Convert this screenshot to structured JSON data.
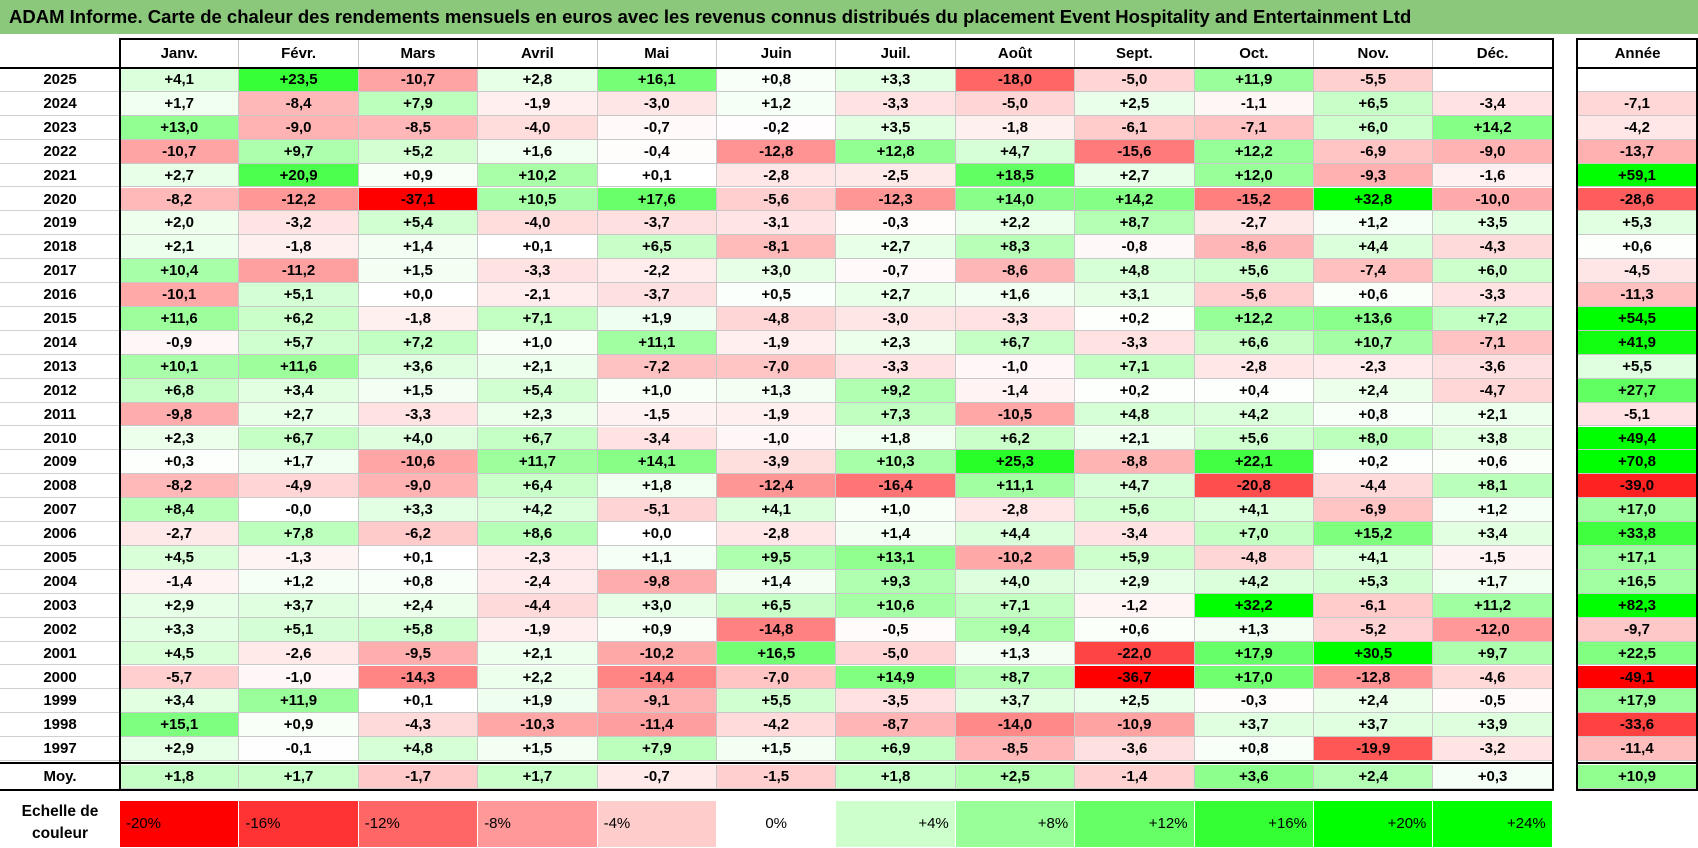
{
  "title": "ADAM Informe. Carte de chaleur des rendements mensuels en euros avec les revenus connus distribués du placement Event Hospitality and Entertainment Ltd",
  "chart_data": {
    "type": "heatmap",
    "months": [
      "Janv.",
      "Févr.",
      "Mars",
      "Avril",
      "Mai",
      "Juin",
      "Juil.",
      "Août",
      "Sept.",
      "Oct.",
      "Nov.",
      "Déc."
    ],
    "annual_header": "Année",
    "rows": [
      {
        "year": "2025",
        "values": [
          "+4,1",
          "+23,5",
          "-10,7",
          "+2,8",
          "+16,1",
          "+0,8",
          "+3,3",
          "-18,0",
          "-5,0",
          "+11,9",
          "-5,5",
          ""
        ],
        "annual": ""
      },
      {
        "year": "2024",
        "values": [
          "+1,7",
          "-8,4",
          "+7,9",
          "-1,9",
          "-3,0",
          "+1,2",
          "-3,3",
          "-5,0",
          "+2,5",
          "-1,1",
          "+6,5",
          "-3,4"
        ],
        "annual": "-7,1"
      },
      {
        "year": "2023",
        "values": [
          "+13,0",
          "-9,0",
          "-8,5",
          "-4,0",
          "-0,7",
          "-0,2",
          "+3,5",
          "-1,8",
          "-6,1",
          "-7,1",
          "+6,0",
          "+14,2"
        ],
        "annual": "-4,2"
      },
      {
        "year": "2022",
        "values": [
          "-10,7",
          "+9,7",
          "+5,2",
          "+1,6",
          "-0,4",
          "-12,8",
          "+12,8",
          "+4,7",
          "-15,6",
          "+12,2",
          "-6,9",
          "-9,0"
        ],
        "annual": "-13,7"
      },
      {
        "year": "2021",
        "values": [
          "+2,7",
          "+20,9",
          "+0,9",
          "+10,2",
          "+0,1",
          "-2,8",
          "-2,5",
          "+18,5",
          "+2,7",
          "+12,0",
          "-9,3",
          "-1,6"
        ],
        "annual": "+59,1"
      },
      {
        "year": "2020",
        "values": [
          "-8,2",
          "-12,2",
          "-37,1",
          "+10,5",
          "+17,6",
          "-5,6",
          "-12,3",
          "+14,0",
          "+14,2",
          "-15,2",
          "+32,8",
          "-10,0"
        ],
        "annual": "-28,6"
      },
      {
        "year": "2019",
        "values": [
          "+2,0",
          "-3,2",
          "+5,4",
          "-4,0",
          "-3,7",
          "-3,1",
          "-0,3",
          "+2,2",
          "+8,7",
          "-2,7",
          "+1,2",
          "+3,5"
        ],
        "annual": "+5,3"
      },
      {
        "year": "2018",
        "values": [
          "+2,1",
          "-1,8",
          "+1,4",
          "+0,1",
          "+6,5",
          "-8,1",
          "+2,7",
          "+8,3",
          "-0,8",
          "-8,6",
          "+4,4",
          "-4,3"
        ],
        "annual": "+0,6"
      },
      {
        "year": "2017",
        "values": [
          "+10,4",
          "-11,2",
          "+1,5",
          "-3,3",
          "-2,2",
          "+3,0",
          "-0,7",
          "-8,6",
          "+4,8",
          "+5,6",
          "-7,4",
          "+6,0"
        ],
        "annual": "-4,5"
      },
      {
        "year": "2016",
        "values": [
          "-10,1",
          "+5,1",
          "+0,0",
          "-2,1",
          "-3,7",
          "+0,5",
          "+2,7",
          "+1,6",
          "+3,1",
          "-5,6",
          "+0,6",
          "-3,3"
        ],
        "annual": "-11,3"
      },
      {
        "year": "2015",
        "values": [
          "+11,6",
          "+6,2",
          "-1,8",
          "+7,1",
          "+1,9",
          "-4,8",
          "-3,0",
          "-3,3",
          "+0,2",
          "+12,2",
          "+13,6",
          "+7,2"
        ],
        "annual": "+54,5"
      },
      {
        "year": "2014",
        "values": [
          "-0,9",
          "+5,7",
          "+7,2",
          "+1,0",
          "+11,1",
          "-1,9",
          "+2,3",
          "+6,7",
          "-3,3",
          "+6,6",
          "+10,7",
          "-7,1"
        ],
        "annual": "+41,9"
      },
      {
        "year": "2013",
        "values": [
          "+10,1",
          "+11,6",
          "+3,6",
          "+2,1",
          "-7,2",
          "-7,0",
          "-3,3",
          "-1,0",
          "+7,1",
          "-2,8",
          "-2,3",
          "-3,6"
        ],
        "annual": "+5,5"
      },
      {
        "year": "2012",
        "values": [
          "+6,8",
          "+3,4",
          "+1,5",
          "+5,4",
          "+1,0",
          "+1,3",
          "+9,2",
          "-1,4",
          "+0,2",
          "+0,4",
          "+2,4",
          "-4,7"
        ],
        "annual": "+27,7"
      },
      {
        "year": "2011",
        "values": [
          "-9,8",
          "+2,7",
          "-3,3",
          "+2,3",
          "-1,5",
          "-1,9",
          "+7,3",
          "-10,5",
          "+4,8",
          "+4,2",
          "+0,8",
          "+2,1"
        ],
        "annual": "-5,1"
      },
      {
        "year": "2010",
        "values": [
          "+2,3",
          "+6,7",
          "+4,0",
          "+6,7",
          "-3,4",
          "-1,0",
          "+1,8",
          "+6,2",
          "+2,1",
          "+5,6",
          "+8,0",
          "+3,8"
        ],
        "annual": "+49,4"
      },
      {
        "year": "2009",
        "values": [
          "+0,3",
          "+1,7",
          "-10,6",
          "+11,7",
          "+14,1",
          "-3,9",
          "+10,3",
          "+25,3",
          "-8,8",
          "+22,1",
          "+0,2",
          "+0,6"
        ],
        "annual": "+70,8"
      },
      {
        "year": "2008",
        "values": [
          "-8,2",
          "-4,9",
          "-9,0",
          "+6,4",
          "+1,8",
          "-12,4",
          "-16,4",
          "+11,1",
          "+4,7",
          "-20,8",
          "-4,4",
          "+8,1"
        ],
        "annual": "-39,0"
      },
      {
        "year": "2007",
        "values": [
          "+8,4",
          "-0,0",
          "+3,3",
          "+4,2",
          "-5,1",
          "+4,1",
          "+1,0",
          "-2,8",
          "+5,6",
          "+4,1",
          "-6,9",
          "+1,2"
        ],
        "annual": "+17,0"
      },
      {
        "year": "2006",
        "values": [
          "-2,7",
          "+7,8",
          "-6,2",
          "+8,6",
          "+0,0",
          "-2,8",
          "+1,4",
          "+4,4",
          "-3,4",
          "+7,0",
          "+15,2",
          "+3,4"
        ],
        "annual": "+33,8"
      },
      {
        "year": "2005",
        "values": [
          "+4,5",
          "-1,3",
          "+0,1",
          "-2,3",
          "+1,1",
          "+9,5",
          "+13,1",
          "-10,2",
          "+5,9",
          "-4,8",
          "+4,1",
          "-1,5"
        ],
        "annual": "+17,1"
      },
      {
        "year": "2004",
        "values": [
          "-1,4",
          "+1,2",
          "+0,8",
          "-2,4",
          "-9,8",
          "+1,4",
          "+9,3",
          "+4,0",
          "+2,9",
          "+4,2",
          "+5,3",
          "+1,7"
        ],
        "annual": "+16,5"
      },
      {
        "year": "2003",
        "values": [
          "+2,9",
          "+3,7",
          "+2,4",
          "-4,4",
          "+3,0",
          "+6,5",
          "+10,6",
          "+7,1",
          "-1,2",
          "+32,2",
          "-6,1",
          "+11,2"
        ],
        "annual": "+82,3"
      },
      {
        "year": "2002",
        "values": [
          "+3,3",
          "+5,1",
          "+5,8",
          "-1,9",
          "+0,9",
          "-14,8",
          "-0,5",
          "+9,4",
          "+0,6",
          "+1,3",
          "-5,2",
          "-12,0"
        ],
        "annual": "-9,7"
      },
      {
        "year": "2001",
        "values": [
          "+4,5",
          "-2,6",
          "-9,5",
          "+2,1",
          "-10,2",
          "+16,5",
          "-5,0",
          "+1,3",
          "-22,0",
          "+17,9",
          "+30,5",
          "+9,7"
        ],
        "annual": "+22,5"
      },
      {
        "year": "2000",
        "values": [
          "-5,7",
          "-1,0",
          "-14,3",
          "+2,2",
          "-14,4",
          "-7,0",
          "+14,9",
          "+8,7",
          "-36,7",
          "+17,0",
          "-12,8",
          "-4,6"
        ],
        "annual": "-49,1"
      },
      {
        "year": "1999",
        "values": [
          "+3,4",
          "+11,9",
          "+0,1",
          "+1,9",
          "-9,1",
          "+5,5",
          "-3,5",
          "+3,7",
          "+2,5",
          "-0,3",
          "+2,4",
          "-0,5"
        ],
        "annual": "+17,9"
      },
      {
        "year": "1998",
        "values": [
          "+15,1",
          "+0,9",
          "-4,3",
          "-10,3",
          "-11,4",
          "-4,2",
          "-8,7",
          "-14,0",
          "-10,9",
          "+3,7",
          "+3,7",
          "+3,9"
        ],
        "annual": "-33,6"
      },
      {
        "year": "1997",
        "values": [
          "+2,9",
          "-0,1",
          "+4,8",
          "+1,5",
          "+7,9",
          "+1,5",
          "+6,9",
          "-8,5",
          "-3,6",
          "+0,8",
          "-19,9",
          "-3,2"
        ],
        "annual": "-11,4"
      }
    ],
    "average": {
      "label": "Moy.",
      "values": [
        "+1,8",
        "+1,7",
        "-1,7",
        "+1,7",
        "-0,7",
        "-1,5",
        "+1,8",
        "+2,5",
        "-1,4",
        "+3,6",
        "+2,4",
        "+0,3"
      ],
      "annual": "+10,9"
    },
    "scale": {
      "label_line1": "Echelle de",
      "label_line2": "couleur",
      "steps": [
        "-20%",
        "-16%",
        "-12%",
        "-8%",
        "-4%",
        "0%",
        "+4%",
        "+8%",
        "+12%",
        "+16%",
        "+20%",
        "+24%"
      ]
    },
    "colors": {
      "negative_max": "#ff0000",
      "neutral": "#ffffff",
      "positive_max": "#00ff00",
      "title_bar": "#8cc87c"
    }
  }
}
